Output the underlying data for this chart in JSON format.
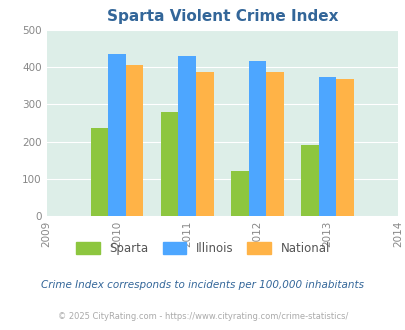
{
  "title": "Sparta Violent Crime Index",
  "years": [
    2010,
    2011,
    2012,
    2013
  ],
  "sparta": [
    237,
    278,
    120,
    190
  ],
  "illinois": [
    435,
    430,
    416,
    373
  ],
  "national": [
    406,
    387,
    387,
    367
  ],
  "sparta_color": "#8dc63f",
  "illinois_color": "#4da6ff",
  "national_color": "#ffb347",
  "bg_color": "#ddeee8",
  "fig_bg": "#ffffff",
  "xlim_years": [
    2009,
    2014
  ],
  "ylim": [
    0,
    500
  ],
  "yticks": [
    0,
    100,
    200,
    300,
    400,
    500
  ],
  "footnote1": "Crime Index corresponds to incidents per 100,000 inhabitants",
  "footnote2": "© 2025 CityRating.com - https://www.cityrating.com/crime-statistics/",
  "legend_labels": [
    "Sparta",
    "Illinois",
    "National"
  ],
  "bar_width": 0.25,
  "title_color": "#336699",
  "tick_color": "#888888",
  "footnote1_color": "#336699",
  "footnote2_color": "#aaaaaa"
}
